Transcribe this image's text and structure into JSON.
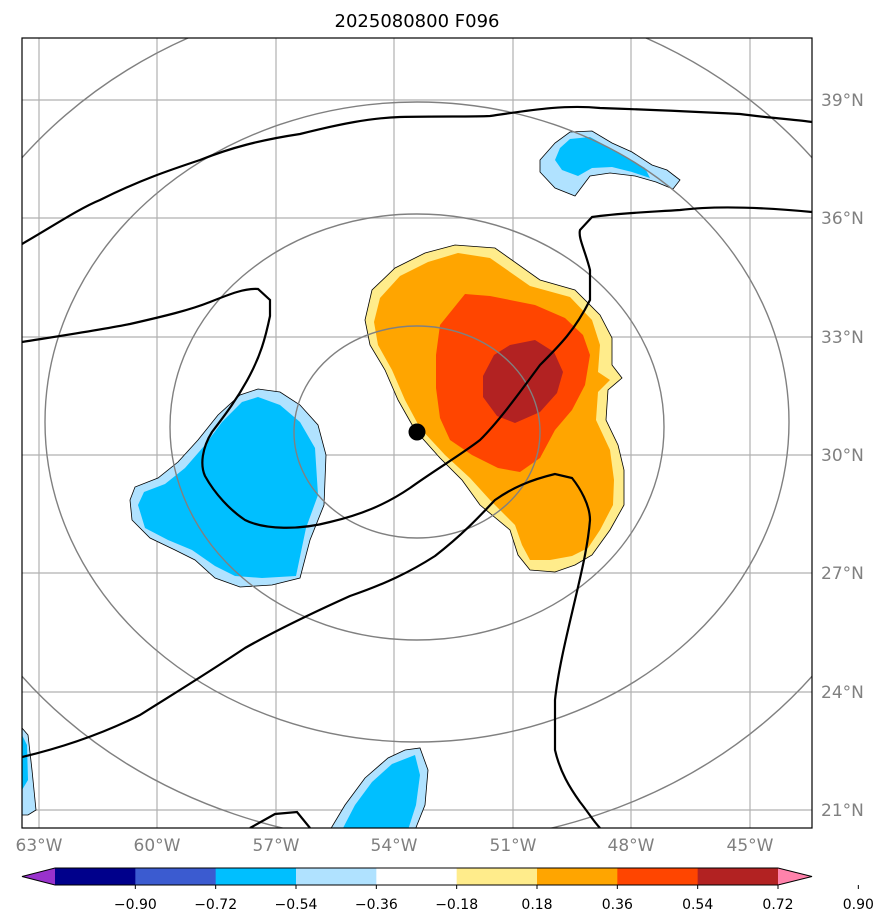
{
  "title": "2025080800 F096",
  "lon_ticks": [
    "63°W",
    "60°W",
    "57°W",
    "54°W",
    "51°W",
    "48°W",
    "45°W"
  ],
  "lat_ticks": [
    "39°N",
    "36°N",
    "33°N",
    "30°N",
    "27°N",
    "24°N",
    "21°N"
  ],
  "center_marker": {
    "lon": -53.25,
    "lat": 30.6
  },
  "colorbar": {
    "ticks": [
      "−0.90",
      "−0.72",
      "−0.54",
      "−0.36",
      "−0.18",
      "0.18",
      "0.36",
      "0.54",
      "0.72",
      "0.90"
    ],
    "colors": [
      "#9932cc",
      "#00008b",
      "#3b5bd0",
      "#00bfff",
      "#b0e2ff",
      "#ffffff",
      "#ffec8b",
      "#ffa500",
      "#ff4500",
      "#b22222",
      "#ff82ab"
    ]
  },
  "colors": {
    "grid": "#b0b0b0",
    "range_rings": "#808080",
    "contour_line": "#000000",
    "coast_outline": "#000000"
  }
}
